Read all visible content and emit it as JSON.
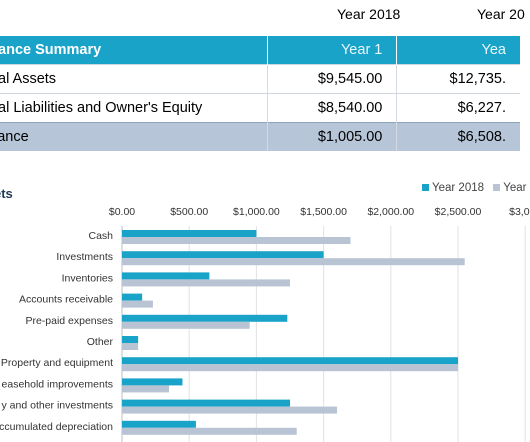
{
  "year_headers": [
    "Year 2018",
    "Year 20"
  ],
  "summary": {
    "header": {
      "label": "lance Summary",
      "col1": "Year 1",
      "col2": "Yea"
    },
    "rows": [
      {
        "label": "tal Assets",
        "col1": "$9,545.00",
        "col2": "$12,735."
      },
      {
        "label": "tal Liabilities and Owner's Equity",
        "col1": "$8,540.00",
        "col2": "$6,227."
      },
      {
        "label": "lance",
        "col1": "$1,005.00",
        "col2": "$6,508."
      }
    ]
  },
  "colors": {
    "series1": "#1aa3c8",
    "series2": "#b8c4d4",
    "header_bg": "#1aa3c8",
    "balance_bg": "#b6c5d7"
  },
  "chart_data": {
    "type": "bar",
    "orientation": "horizontal",
    "title": "ets",
    "legend": {
      "position": "top-right",
      "entries": [
        "Year 2018",
        "Year"
      ]
    },
    "x_ticks": [
      "$0.00",
      "$500.00",
      "$1,000.00",
      "$1,500.00",
      "$2,000.00",
      "$2,500.00",
      "$3,000"
    ],
    "xlim": [
      0,
      3000
    ],
    "grid": true,
    "categories": [
      "Cash",
      "Investments",
      "Inventories",
      "Accounts receivable",
      "Pre-paid expenses",
      "Other",
      "Property and equipment",
      "easehold improvements",
      "y and other investments",
      "ccumulated depreciation"
    ],
    "series": [
      {
        "name": "Year 2018",
        "values": [
          1000,
          1500,
          650,
          150,
          1230,
          120,
          2500,
          450,
          1250,
          550
        ]
      },
      {
        "name": "Year",
        "values": [
          1700,
          2550,
          1250,
          230,
          950,
          120,
          2500,
          350,
          1600,
          1300
        ]
      }
    ]
  }
}
